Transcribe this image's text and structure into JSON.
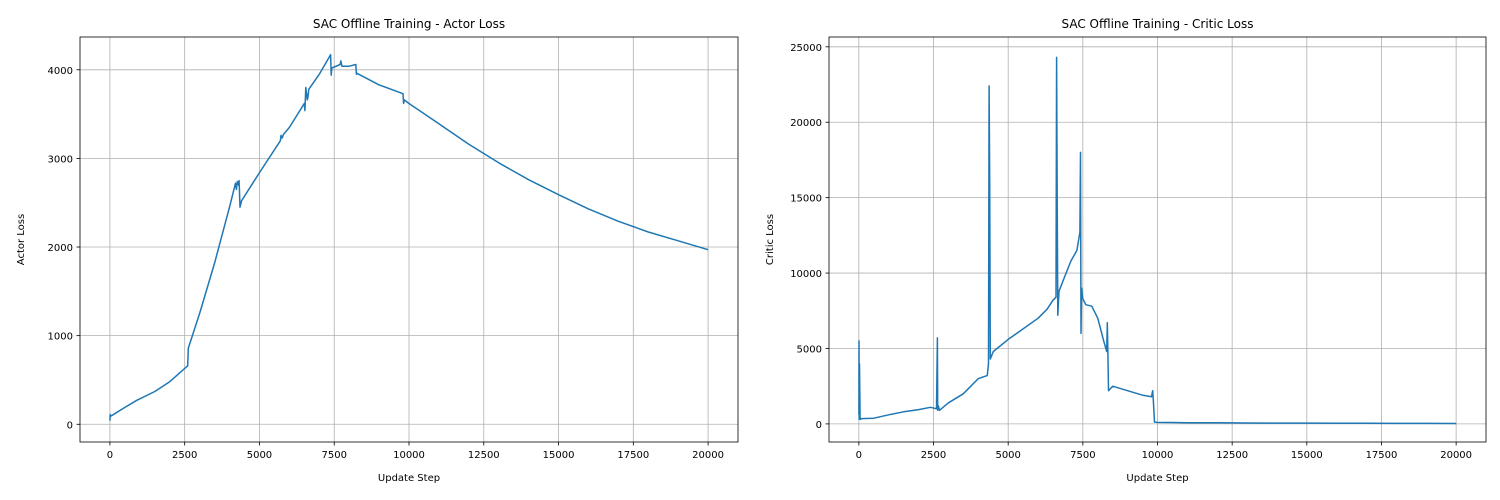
{
  "chart_data": [
    {
      "type": "line",
      "title": "SAC Offline Training - Actor Loss",
      "xlabel": "Update Step",
      "ylabel": "Actor Loss",
      "xlim": [
        -1000,
        21000
      ],
      "ylim": [
        -200,
        4370
      ],
      "xticks": [
        0,
        2500,
        5000,
        7500,
        10000,
        12500,
        15000,
        17500,
        20000
      ],
      "xtick_labels": [
        "0",
        "2500",
        "5000",
        "7500",
        "10000",
        "12500",
        "15000",
        "17500",
        "20000"
      ],
      "yticks": [
        0,
        1000,
        2000,
        3000,
        4000
      ],
      "ytick_labels": [
        "0",
        "1000",
        "2000",
        "3000",
        "4000"
      ],
      "grid": true,
      "color": "#1f77b4",
      "series": [
        {
          "x": [
            0,
            10,
            20,
            500,
            900,
            1500,
            2000,
            2600,
            2620,
            2660,
            3000,
            3500,
            4000,
            4200,
            4230,
            4260,
            4300,
            4320,
            4350,
            4380,
            4400,
            5000,
            5700,
            5720,
            5760,
            5800,
            6000,
            6500,
            6520,
            6550,
            6600,
            6620,
            6650,
            7000,
            7380,
            7400,
            7420,
            7700,
            7720,
            7760,
            8000,
            8220,
            8240,
            8260,
            9000,
            9800,
            9820,
            9840,
            10000,
            11000,
            12000,
            13000,
            14000,
            15000,
            16000,
            17000,
            18000,
            19000,
            20000
          ],
          "values": [
            40,
            110,
            90,
            190,
            270,
            370,
            480,
            660,
            860,
            900,
            1250,
            1820,
            2450,
            2720,
            2650,
            2740,
            2700,
            2750,
            2450,
            2490,
            2520,
            2840,
            3200,
            3260,
            3230,
            3270,
            3350,
            3620,
            3540,
            3800,
            3660,
            3690,
            3780,
            3950,
            4170,
            3940,
            4020,
            4060,
            4100,
            4040,
            4040,
            4060,
            3950,
            3960,
            3830,
            3730,
            3620,
            3660,
            3620,
            3390,
            3160,
            2950,
            2760,
            2590,
            2430,
            2290,
            2170,
            2070,
            1970
          ]
        }
      ]
    },
    {
      "type": "line",
      "title": "SAC Offline Training - Critic Loss",
      "xlabel": "Update Step",
      "ylabel": "Critic Loss",
      "xlim": [
        -1000,
        21000
      ],
      "ylim": [
        -1200,
        25650
      ],
      "xticks": [
        0,
        2500,
        5000,
        7500,
        10000,
        12500,
        15000,
        17500,
        20000
      ],
      "xtick_labels": [
        "0",
        "2500",
        "5000",
        "7500",
        "10000",
        "12500",
        "15000",
        "17500",
        "20000"
      ],
      "yticks": [
        0,
        5000,
        10000,
        15000,
        20000,
        25000
      ],
      "ytick_labels": [
        "0",
        "5000",
        "10000",
        "15000",
        "20000",
        "25000"
      ],
      "grid": true,
      "color": "#1f77b4",
      "series": [
        {
          "x": [
            0,
            5,
            10,
            20,
            40,
            100,
            500,
            1000,
            1500,
            2000,
            2400,
            2600,
            2630,
            2640,
            2660,
            2700,
            3000,
            3500,
            4000,
            4300,
            4340,
            4360,
            4380,
            4400,
            4500,
            5000,
            5500,
            6000,
            6300,
            6500,
            6600,
            6620,
            6640,
            6660,
            6700,
            6900,
            7100,
            7300,
            7400,
            7420,
            7440,
            7460,
            7500,
            7600,
            7800,
            8000,
            8200,
            8300,
            8320,
            8340,
            8360,
            8500,
            9000,
            9500,
            9800,
            9840,
            9860,
            9900,
            10000,
            10500,
            11000,
            12000,
            13000,
            14000,
            15000,
            16000,
            17000,
            18000,
            19000,
            20000
          ],
          "values": [
            600,
            5500,
            300,
            4000,
            300,
            350,
            380,
            600,
            800,
            950,
            1100,
            1000,
            5700,
            900,
            1200,
            900,
            1400,
            2000,
            3000,
            3200,
            4000,
            22400,
            16000,
            4300,
            4800,
            5600,
            6300,
            7000,
            7600,
            8200,
            8400,
            24300,
            15000,
            7200,
            8800,
            9800,
            10800,
            11500,
            12700,
            18000,
            6000,
            9000,
            8300,
            7900,
            7800,
            7000,
            5500,
            4800,
            6700,
            4700,
            2200,
            2500,
            2200,
            1900,
            1800,
            2200,
            1600,
            120,
            100,
            90,
            80,
            70,
            60,
            55,
            50,
            45,
            40,
            35,
            30,
            25
          ]
        }
      ]
    }
  ]
}
